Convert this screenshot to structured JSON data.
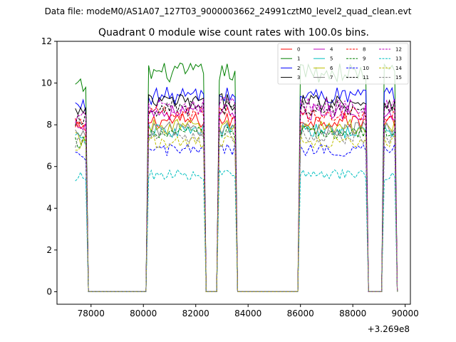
{
  "chart_data": {
    "type": "line",
    "suptitle": "Data file: modeM0/AS1A07_127T03_9000003662_24991cztM0_level2_quad_clean.evt",
    "title": "Quadrant 0 module wise count rates with 100.0s bins.",
    "xlabel": "",
    "ylabel": "",
    "x_offset_label": "+3.269e8",
    "xlim": [
      76700,
      90200
    ],
    "ylim": [
      -0.6,
      12
    ],
    "xticks": [
      78000,
      80000,
      82000,
      84000,
      86000,
      88000,
      90000
    ],
    "xtick_labels": [
      "78000",
      "80000",
      "82000",
      "84000",
      "86000",
      "88000",
      "90000"
    ],
    "yticks": [
      0,
      2,
      4,
      6,
      8,
      10,
      12
    ],
    "ytick_labels": [
      "0",
      "2",
      "4",
      "6",
      "8",
      "10",
      "12"
    ],
    "grid": false,
    "legend_position": "top-right",
    "x_start": 77400,
    "x_step": 100,
    "segments": [
      {
        "start": 77400,
        "end": 77800
      },
      {
        "start": 80200,
        "end": 82300
      },
      {
        "start": 82900,
        "end": 83500
      },
      {
        "start": 86000,
        "end": 88500
      },
      {
        "start": 89200,
        "end": 89600
      }
    ],
    "series": [
      {
        "name": "0",
        "color": "#ff0000",
        "dash": "solid",
        "level": 8.2,
        "early_level": 7.8
      },
      {
        "name": "1",
        "color": "#008000",
        "dash": "solid",
        "level": 10.5,
        "early_level": 9.8
      },
      {
        "name": "2",
        "color": "#0000ff",
        "dash": "solid",
        "level": 9.4,
        "early_level": 8.9
      },
      {
        "name": "3",
        "color": "#000000",
        "dash": "solid",
        "level": 9.1,
        "early_level": 8.6
      },
      {
        "name": "4",
        "color": "#bf00bf",
        "dash": "solid",
        "level": 8.6,
        "early_level": 8.1
      },
      {
        "name": "5",
        "color": "#00bfbf",
        "dash": "solid",
        "level": 7.7,
        "early_level": 7.3
      },
      {
        "name": "6",
        "color": "#bfbf00",
        "dash": "solid",
        "level": 7.9,
        "early_level": 7.4
      },
      {
        "name": "7",
        "color": "#808080",
        "dash": "solid",
        "level": 7.8,
        "early_level": 7.5
      },
      {
        "name": "8",
        "color": "#ff0000",
        "dash": "dashed",
        "level": 8.5,
        "early_level": 8.0
      },
      {
        "name": "9",
        "color": "#008000",
        "dash": "dashed",
        "level": 7.6,
        "early_level": 7.1
      },
      {
        "name": "10",
        "color": "#0000ff",
        "dash": "dashed",
        "level": 6.8,
        "early_level": 6.4
      },
      {
        "name": "11",
        "color": "#000000",
        "dash": "dashed",
        "level": 8.8,
        "early_level": 8.3
      },
      {
        "name": "12",
        "color": "#bf00bf",
        "dash": "dashed",
        "level": 8.9,
        "early_level": 8.4
      },
      {
        "name": "13",
        "color": "#00bfbf",
        "dash": "dashed",
        "level": 5.6,
        "early_level": 5.5
      },
      {
        "name": "14",
        "color": "#bfbf00",
        "dash": "dashed",
        "level": 7.2,
        "early_level": 7.0
      },
      {
        "name": "15",
        "color": "#808080",
        "dash": "dashed",
        "level": 7.4,
        "early_level": 7.1
      }
    ]
  }
}
